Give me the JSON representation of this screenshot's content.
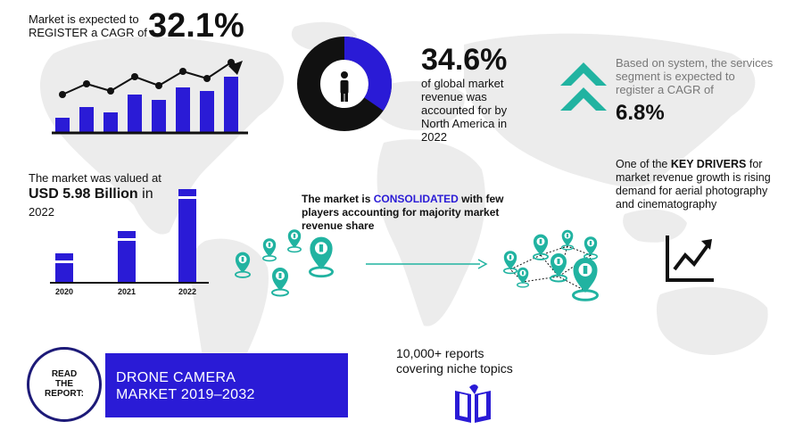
{
  "colors": {
    "accent_blue": "#2a1bd6",
    "teal": "#21b3a1",
    "map_gray": "#e9e9e9",
    "text": "#111111"
  },
  "cagr_block": {
    "line1": "Market is expected to",
    "line2": "REGISTER a CAGR of",
    "value": "32.1%"
  },
  "north_america_block": {
    "value": "34.6%",
    "lines": [
      "of global market",
      "revenue was",
      "accounted for by",
      "North America in",
      "2022"
    ],
    "donut_share": 0.346
  },
  "services_block": {
    "lines": [
      "Based on system, the services",
      "segment is expected to",
      "register a CAGR of"
    ],
    "value": "6.8%"
  },
  "valuation_block": {
    "line1": "The market was valued at",
    "value_prefix": "USD 5.98 Billion",
    "value_suffix": " in",
    "year": "2022",
    "bars": [
      {
        "label": "2020",
        "level": 0.31
      },
      {
        "label": "2021",
        "level": 0.55
      },
      {
        "label": "2022",
        "level": 1.0
      }
    ]
  },
  "consolidated_block": {
    "prefix": "The market is ",
    "highlight": "CONSOLIDATED",
    "suffix": " with few",
    "line2": "players accounting for majority market",
    "line3": "revenue share"
  },
  "drivers_block": {
    "prefix": "One of the ",
    "highlight": "KEY DRIVERS",
    "suffix": " for",
    "line2": "market revenue growth is rising",
    "line3": "demand for aerial photography",
    "line4": "and cinematography"
  },
  "reports_block": {
    "line1": "10,000+ reports",
    "line2": "covering niche topics"
  },
  "read_badge": {
    "line1": "READ",
    "line2": "THE",
    "line3": "REPORT:"
  },
  "banner": {
    "line1": "DRONE CAMERA",
    "line2": "MARKET 2019–2032"
  },
  "icons": {
    "trend_chart": "trend-chart-icon",
    "person_donut": "person-icon",
    "chevrons": "double-chevron-up-icon",
    "growth": "growth-arrow-icon",
    "book": "book-icon",
    "pins": "location-pin-icon"
  }
}
